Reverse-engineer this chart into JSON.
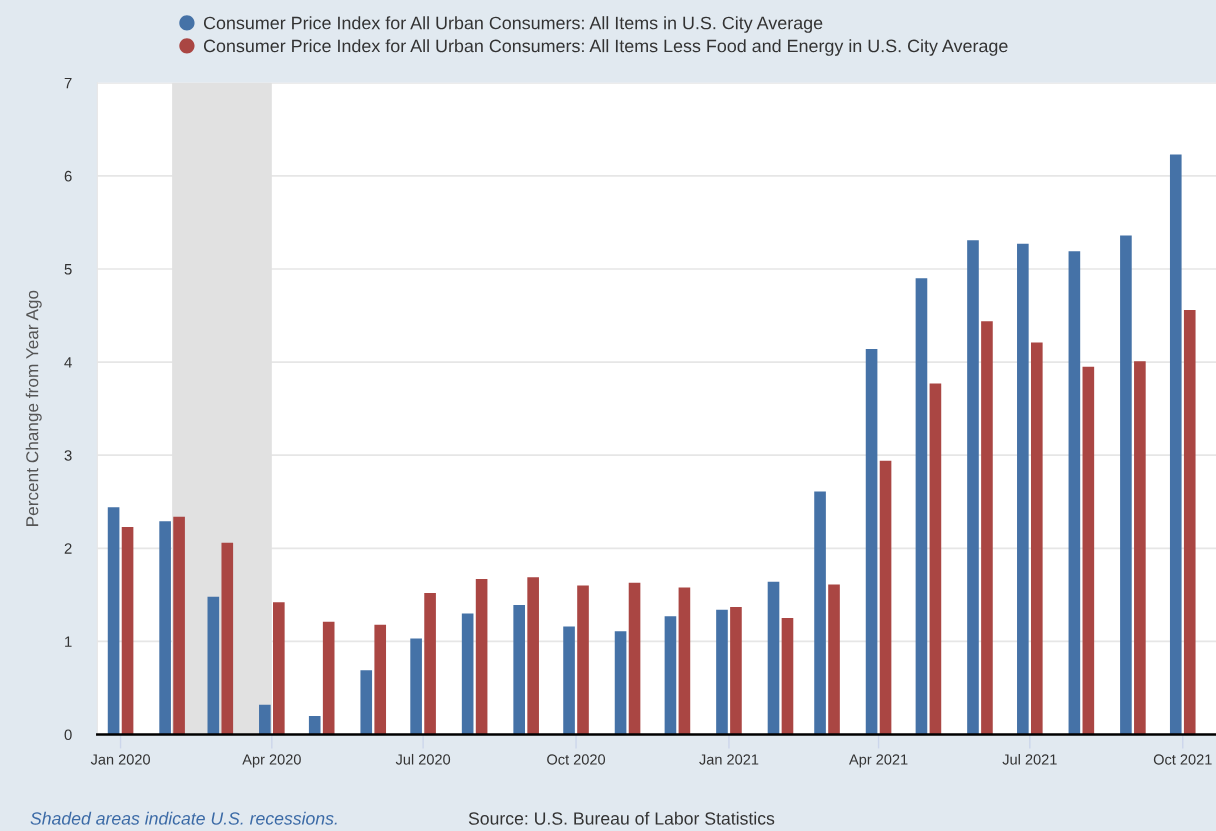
{
  "chart_data": {
    "type": "bar",
    "ylabel": "Percent Change from Year Ago",
    "x": [
      "2020-01",
      "2020-02",
      "2020-03",
      "2020-04",
      "2020-05",
      "2020-06",
      "2020-07",
      "2020-08",
      "2020-09",
      "2020-10",
      "2020-11",
      "2020-12",
      "2021-01",
      "2021-02",
      "2021-03",
      "2021-04",
      "2021-05",
      "2021-06",
      "2021-07",
      "2021-08",
      "2021-09",
      "2021-10"
    ],
    "series": [
      {
        "name": "Consumer Price Index for All Urban Consumers: All Items in U.S. City Average",
        "color": "#4572a7",
        "values": [
          2.44,
          2.29,
          1.48,
          0.32,
          0.2,
          0.69,
          1.03,
          1.3,
          1.39,
          1.16,
          1.11,
          1.27,
          1.34,
          1.64,
          2.61,
          4.14,
          4.9,
          5.31,
          5.27,
          5.19,
          5.36,
          6.23
        ]
      },
      {
        "name": "Consumer Price Index for All Urban Consumers: All Items Less Food and Energy in U.S. City Average",
        "color": "#aa4643",
        "values": [
          2.23,
          2.34,
          2.06,
          1.42,
          1.21,
          1.18,
          1.52,
          1.67,
          1.69,
          1.6,
          1.63,
          1.58,
          1.37,
          1.25,
          1.61,
          2.94,
          3.77,
          4.44,
          4.21,
          3.95,
          4.01,
          4.56
        ]
      }
    ],
    "xlim": [
      "2019-12-18",
      "2021-10-21"
    ],
    "xticks": [
      {
        "value": "2020-01",
        "label": "Jan 2020"
      },
      {
        "value": "2020-04",
        "label": "Apr 2020"
      },
      {
        "value": "2020-07",
        "label": "Jul 2020"
      },
      {
        "value": "2020-10",
        "label": "Oct 2020"
      },
      {
        "value": "2021-01",
        "label": "Jan 2021"
      },
      {
        "value": "2021-04",
        "label": "Apr 2021"
      },
      {
        "value": "2021-07",
        "label": "Jul 2021"
      },
      {
        "value": "2021-10",
        "label": "Oct 2021"
      }
    ],
    "ylim": [
      0,
      7
    ],
    "yticks": [
      0,
      1,
      2,
      3,
      4,
      5,
      6,
      7
    ],
    "bands": [
      {
        "axis": "x",
        "from": "2020-02",
        "to": "2020-04",
        "color": "#e1e1e1"
      }
    ],
    "annotations": [
      "Shaded areas indicate U.S. recessions.",
      "Source: U.S. Bureau of Labor Statistics"
    ],
    "grid": "y",
    "legend": "top"
  }
}
